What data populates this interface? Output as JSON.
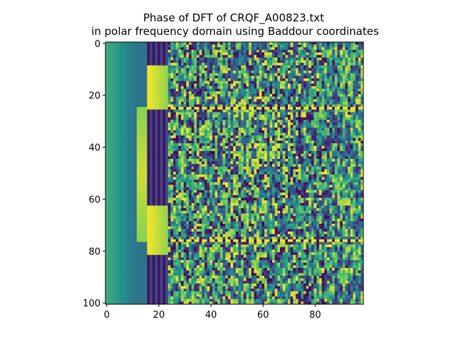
{
  "chart_data": {
    "type": "heatmap",
    "title": "Phase of DFT of CRQF_A00823.txt",
    "subtitle": "in polar frequency domain using Baddour coordinates",
    "xlabel": "",
    "ylabel": "",
    "x_ticks": [
      "0",
      "20",
      "40",
      "60",
      "80"
    ],
    "y_ticks": [
      "0",
      "20",
      "40",
      "60",
      "80",
      "100"
    ],
    "x_tick_values": [
      0,
      20,
      40,
      60,
      80
    ],
    "y_tick_values": [
      0,
      20,
      40,
      60,
      80,
      100
    ],
    "xlim": [
      -0.5,
      98.5
    ],
    "ylim": [
      100.5,
      -0.5
    ],
    "n_cols": 99,
    "n_rows": 101,
    "colormap": "viridis",
    "color_range": [
      -3.14159,
      3.14159
    ],
    "grid": false,
    "colormap_colors": [
      "#440154",
      "#3b528b",
      "#21918c",
      "#5ec962",
      "#fde725"
    ]
  }
}
